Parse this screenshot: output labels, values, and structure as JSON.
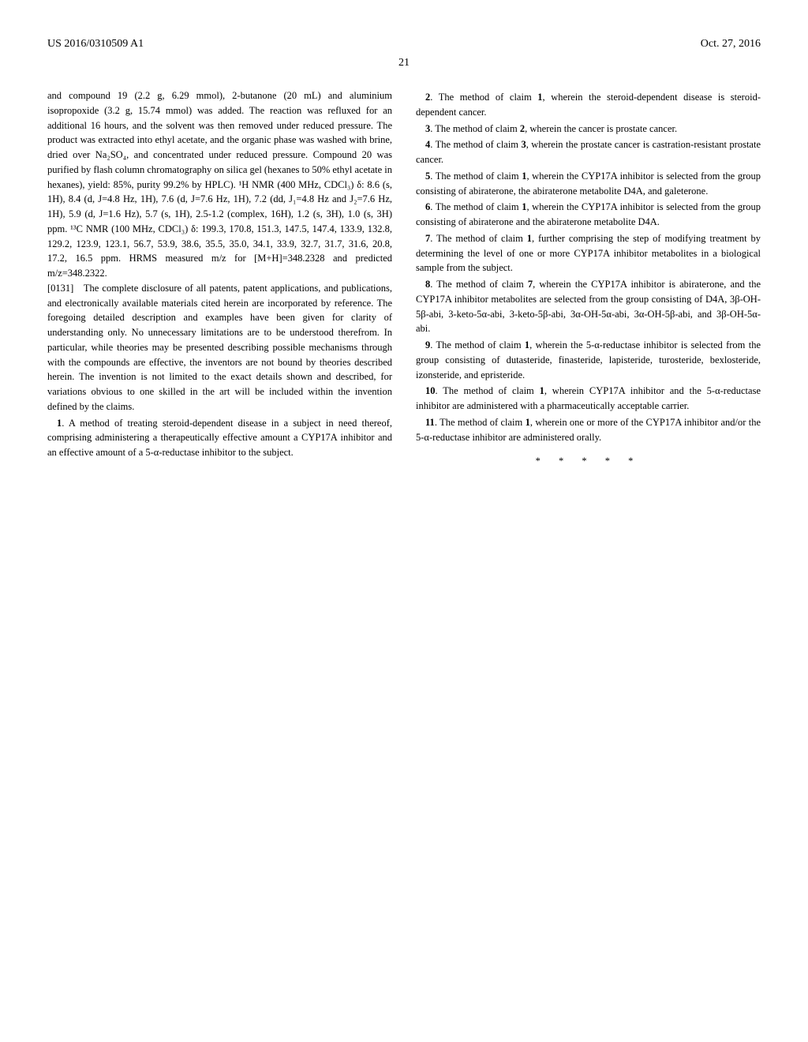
{
  "header": {
    "left": "US 2016/0310509 A1",
    "right": "Oct. 27, 2016"
  },
  "page_number": "21",
  "left_column": {
    "para1": "and compound 19 (2.2 g, 6.29 mmol), 2-butanone (20 mL) and aluminium isopropoxide (3.2 g, 15.74 mmol) was added. The reaction was refluxed for an additional 16 hours, and the solvent was then removed under reduced pressure. The product was extracted into ethyl acetate, and the organic phase was washed with brine, dried over Na₂SO₄, and concentrated under reduced pressure. Compound 20 was purified by flash column chromatography on silica gel (hexanes to 50% ethyl acetate in hexanes), yield: 85%, purity 99.2% by HPLC). ¹H NMR (400 MHz, CDCl₃) δ: 8.6 (s, 1H), 8.4 (d, J=4.8 Hz, 1H), 7.6 (d, J=7.6 Hz, 1H), 7.2 (dd, J₁=4.8 Hz and J₂=7.6 Hz, 1H), 5.9 (d, J=1.6 Hz), 5.7 (s, 1H), 2.5-1.2 (complex, 16H), 1.2 (s, 3H), 1.0 (s, 3H) ppm. ¹³C NMR (100 MHz, CDCl₃) δ: 199.3, 170.8, 151.3, 147.5, 147.4, 133.9, 132.8, 129.2, 123.9, 123.1, 56.7, 53.9, 38.6, 35.5, 35.0, 34.1, 33.9, 32.7, 31.7, 31.6, 20.8, 17.2, 16.5 ppm. HRMS measured m/z for [M+H]=348.2328 and predicted m/z=348.2322.",
    "para2_label": "[0131]",
    "para2": "The complete disclosure of all patents, patent applications, and publications, and electronically available materials cited herein are incorporated by reference. The foregoing detailed description and examples have been given for clarity of understanding only. No unnecessary limitations are to be understood therefrom. In particular, while theories may be presented describing possible mechanisms through with the compounds are effective, the inventors are not bound by theories described herein. The invention is not limited to the exact details shown and described, for variations obvious to one skilled in the art will be included within the invention defined by the claims.",
    "claim1_num": "1",
    "claim1": ". A method of treating steroid-dependent disease in a subject in need thereof, comprising administering a therapeutically effective amount a CYP17A inhibitor and an effective amount of a 5-α-reductase inhibitor to the subject."
  },
  "right_column": {
    "claim2_num": "2",
    "claim2": ". The method of claim ",
    "claim2_ref": "1",
    "claim2_end": ", wherein the steroid-dependent disease is steroid-dependent cancer.",
    "claim3_num": "3",
    "claim3": ". The method of claim ",
    "claim3_ref": "2",
    "claim3_end": ", wherein the cancer is prostate cancer.",
    "claim4_num": "4",
    "claim4": ". The method of claim ",
    "claim4_ref": "3",
    "claim4_end": ", wherein the prostate cancer is castration-resistant prostate cancer.",
    "claim5_num": "5",
    "claim5": ". The method of claim ",
    "claim5_ref": "1",
    "claim5_end": ", wherein the CYP17A inhibitor is selected from the group consisting of abiraterone, the abiraterone metabolite D4A, and galeterone.",
    "claim6_num": "6",
    "claim6": ". The method of claim ",
    "claim6_ref": "1",
    "claim6_end": ", wherein the CYP17A inhibitor is selected from the group consisting of abiraterone and the abiraterone metabolite D4A.",
    "claim7_num": "7",
    "claim7": ". The method of claim ",
    "claim7_ref": "1",
    "claim7_end": ", further comprising the step of modifying treatment by determining the level of one or more CYP17A inhibitor metabolites in a biological sample from the subject.",
    "claim8_num": "8",
    "claim8": ". The method of claim ",
    "claim8_ref": "7",
    "claim8_end": ", wherein the CYP17A inhibitor is abiraterone, and the CYP17A inhibitor metabolites are selected from the group consisting of D4A, 3β-OH-5β-abi, 3-keto-5α-abi, 3-keto-5β-abi, 3α-OH-5α-abi, 3α-OH-5β-abi, and 3β-OH-5α-abi.",
    "claim9_num": "9",
    "claim9": ". The method of claim ",
    "claim9_ref": "1",
    "claim9_end": ", wherein the 5-α-reductase inhibitor is selected from the group consisting of dutasteride, finasteride, lapisteride, turosteride, bexlosteride, izonsteride, and epristeride.",
    "claim10_num": "10",
    "claim10": ". The method of claim ",
    "claim10_ref": "1",
    "claim10_end": ", wherein CYP17A inhibitor and the 5-α-reductase inhibitor are administered with a pharmaceutically acceptable carrier.",
    "claim11_num": "11",
    "claim11": ". The method of claim ",
    "claim11_ref": "1",
    "claim11_end": ", wherein one or more of the CYP17A inhibitor and/or the 5-α-reductase inhibitor are administered orally.",
    "separator": "* * * * *"
  }
}
